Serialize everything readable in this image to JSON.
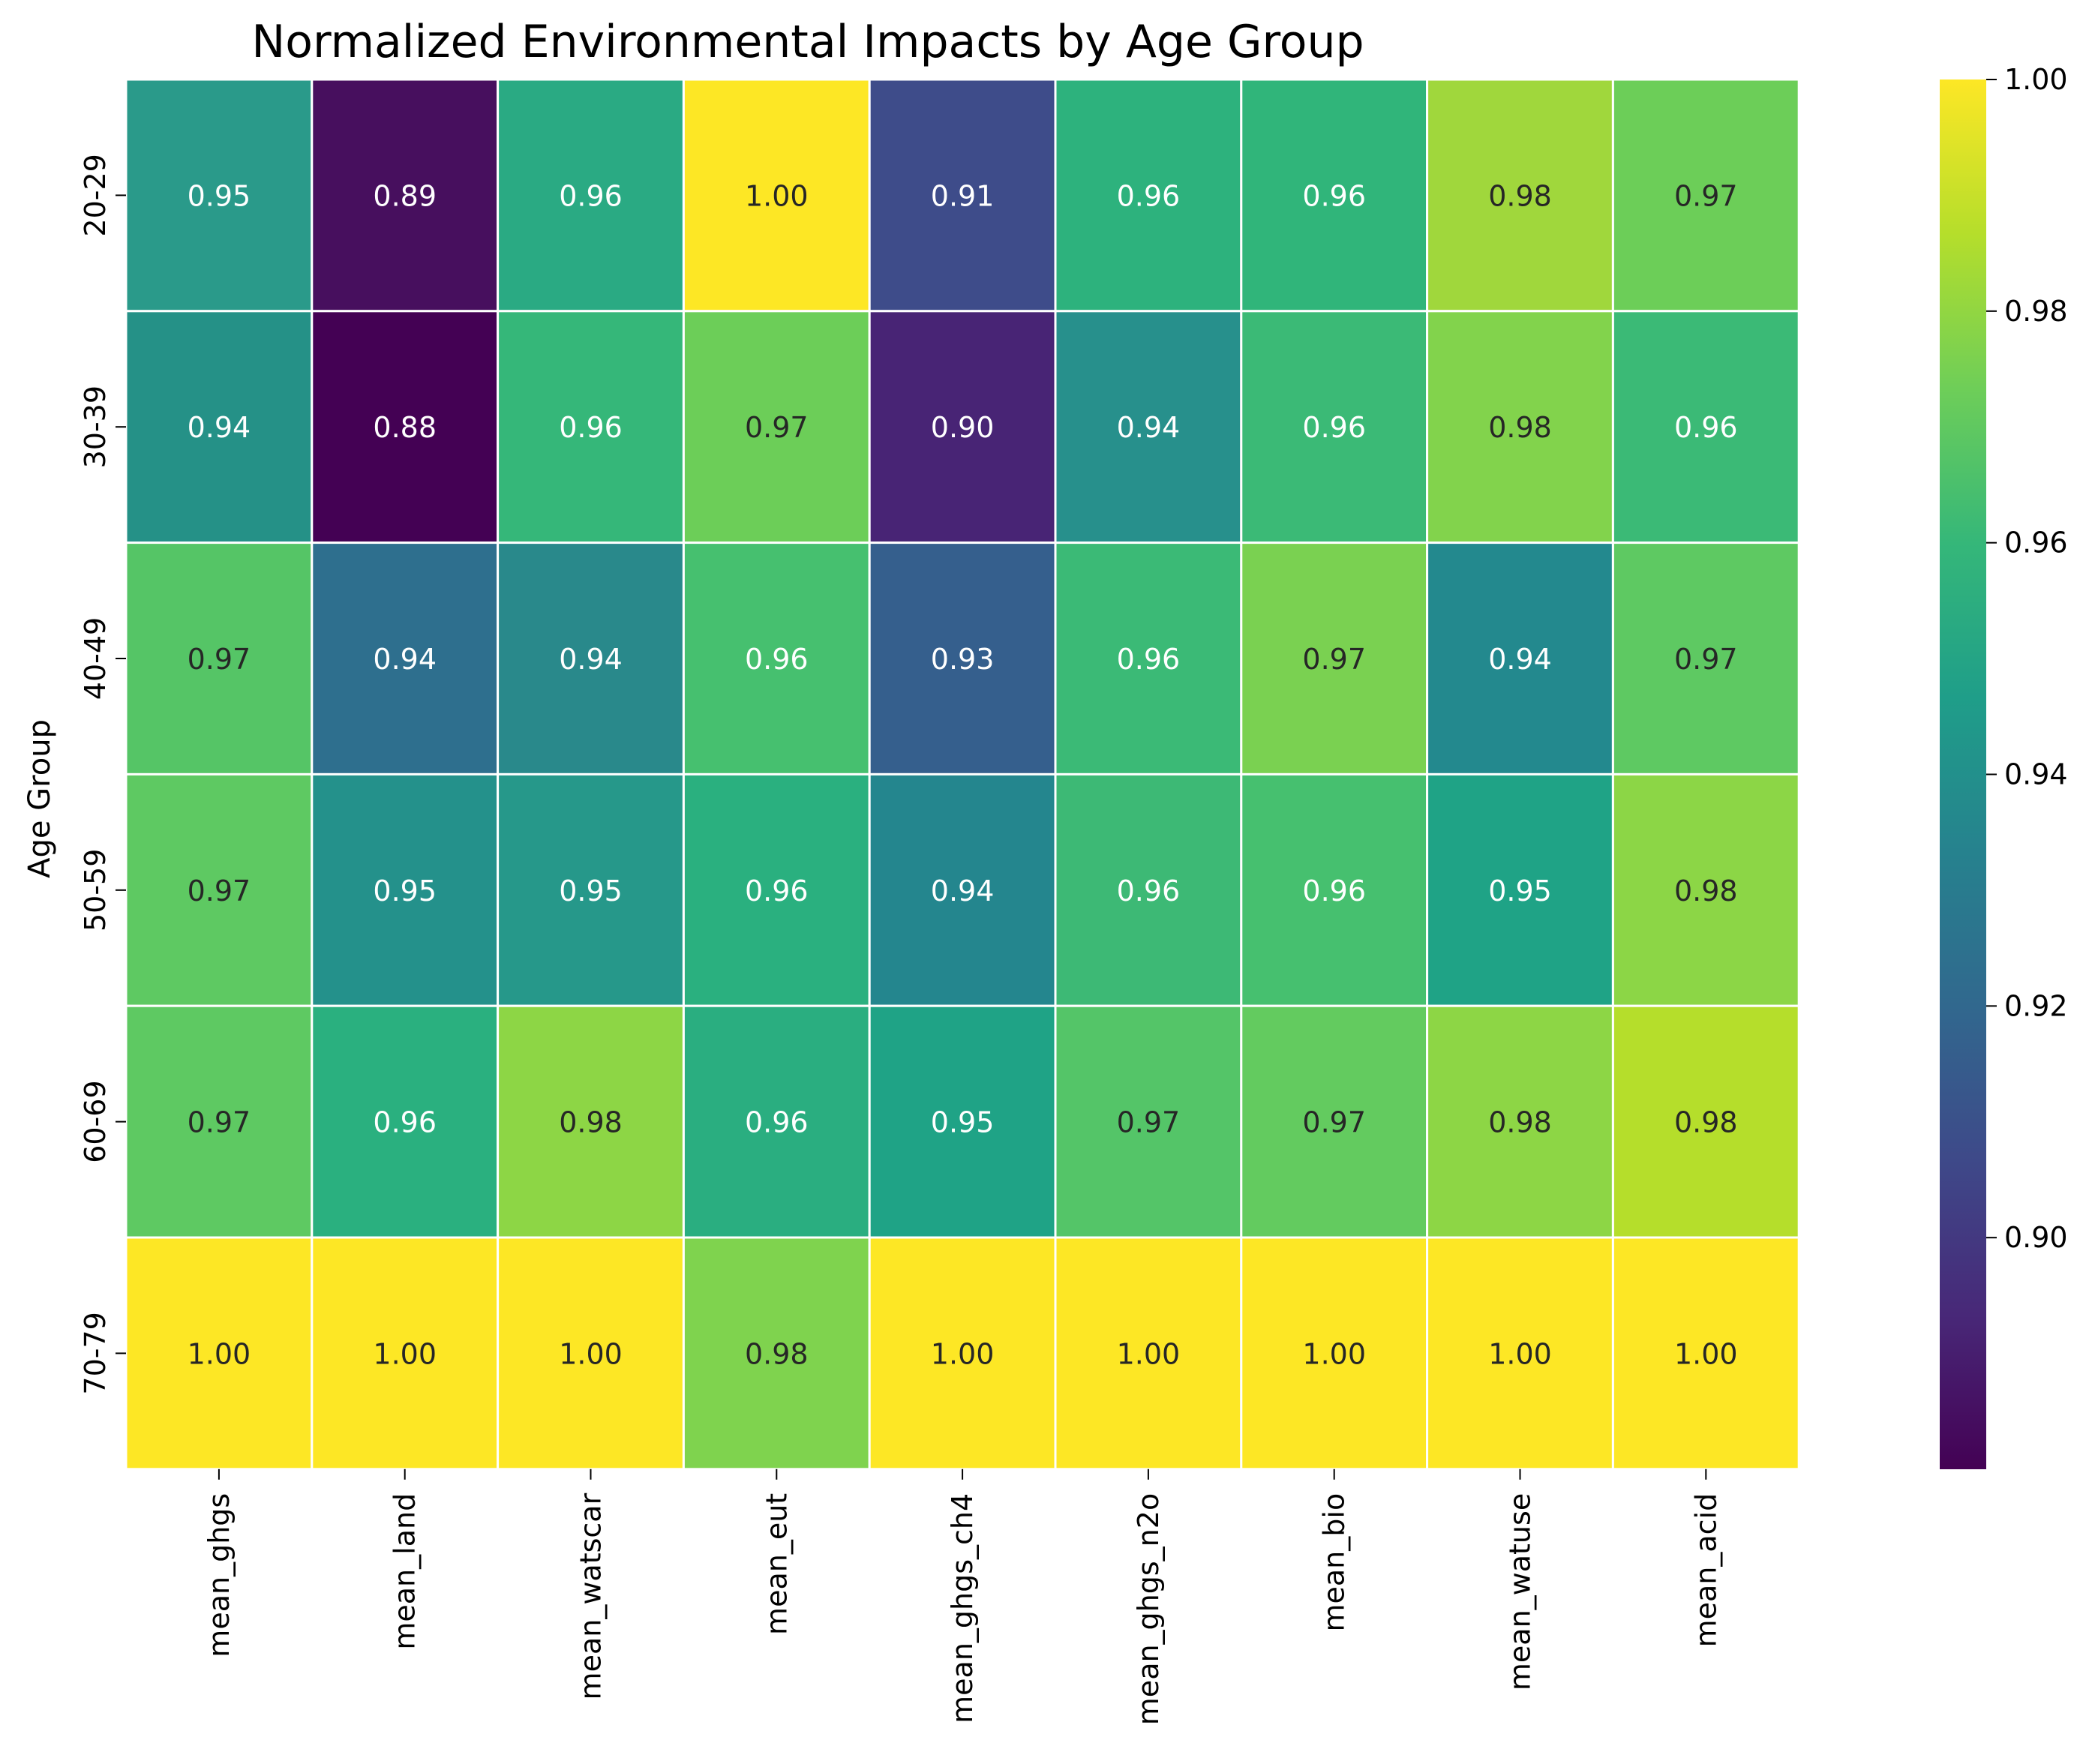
{
  "chart_data": {
    "type": "heatmap",
    "title": "Normalized Environmental Impacts by Age Group",
    "xlabel": "",
    "ylabel": "Age Group",
    "x_categories": [
      "mean_ghgs",
      "mean_land",
      "mean_watscar",
      "mean_eut",
      "mean_ghgs_ch4",
      "mean_ghgs_n2o",
      "mean_bio",
      "mean_watuse",
      "mean_acid"
    ],
    "y_categories": [
      "20-29",
      "30-39",
      "40-49",
      "50-59",
      "60-69",
      "70-79"
    ],
    "values": [
      [
        0.95,
        0.89,
        0.96,
        1.0,
        0.91,
        0.96,
        0.96,
        0.98,
        0.97
      ],
      [
        0.94,
        0.88,
        0.96,
        0.97,
        0.9,
        0.94,
        0.96,
        0.98,
        0.96
      ],
      [
        0.97,
        0.94,
        0.94,
        0.96,
        0.93,
        0.96,
        0.97,
        0.94,
        0.97
      ],
      [
        0.97,
        0.95,
        0.95,
        0.96,
        0.94,
        0.96,
        0.96,
        0.95,
        0.98
      ],
      [
        0.97,
        0.96,
        0.98,
        0.96,
        0.95,
        0.97,
        0.97,
        0.98,
        0.98
      ],
      [
        1.0,
        1.0,
        1.0,
        0.98,
        1.0,
        1.0,
        1.0,
        1.0,
        1.0
      ]
    ],
    "cell_colors": [
      [
        "#2a9a8a",
        "#470f5e",
        "#2aaa83",
        "#fde725",
        "#3e4c8a",
        "#2db27d",
        "#30b57a",
        "#a0d73c",
        "#6cce58"
      ],
      [
        "#259187",
        "#440154",
        "#35b779",
        "#6cce58",
        "#482475",
        "#27908c",
        "#3bba76",
        "#82d34c",
        "#3bba76"
      ],
      [
        "#55c566",
        "#2e6f8e",
        "#29898b",
        "#46c06f",
        "#355f8d",
        "#3bba76",
        "#7ad151",
        "#23898e",
        "#5ec962"
      ],
      [
        "#5ec962",
        "#24918b",
        "#26988a",
        "#2ab07f",
        "#24868e",
        "#3db975",
        "#46c06f",
        "#1fa386",
        "#8cd646"
      ],
      [
        "#5ec962",
        "#2ab07f",
        "#8dd645",
        "#2aae80",
        "#1fa386",
        "#54c568",
        "#63cb5f",
        "#8dd645",
        "#b5de2b"
      ],
      [
        "#fde725",
        "#fde725",
        "#fde725",
        "#7fd34e",
        "#fde725",
        "#fde725",
        "#fde725",
        "#fde725",
        "#fde725"
      ]
    ],
    "colorbar": {
      "min": 0.88,
      "max": 1.0,
      "ticks": [
        "0.90",
        "0.92",
        "0.94",
        "0.96",
        "0.98",
        "1.00"
      ],
      "tick_values": [
        0.9,
        0.92,
        0.94,
        0.96,
        0.98,
        1.0
      ],
      "colormap": "viridis",
      "stops": [
        "#440154",
        "#482878",
        "#3e4989",
        "#31688e",
        "#26828e",
        "#1f9e89",
        "#35b779",
        "#6ece58",
        "#b5de2b",
        "#fde725"
      ]
    },
    "annotation_colors": {
      "dark": "#262626",
      "light": "#ffffff"
    },
    "grid_line_color": "#ffffff",
    "legend": "colorbar-right"
  }
}
